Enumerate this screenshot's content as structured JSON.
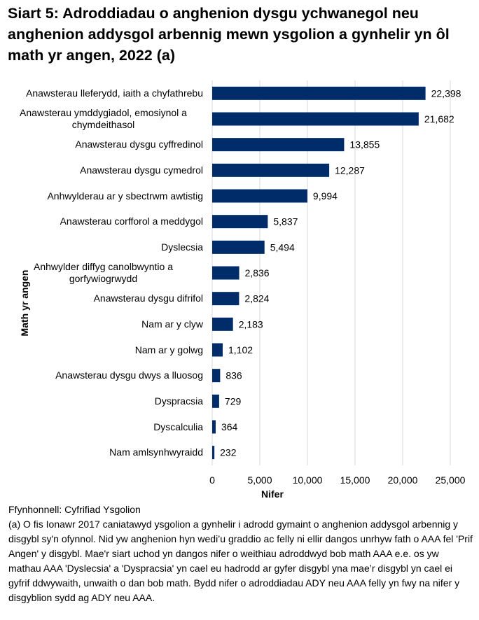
{
  "chart_data": {
    "type": "bar",
    "orientation": "horizontal",
    "title": "Siart 5: Adroddiadau o anghenion dysgu ychwanegol neu anghenion addysgol arbennig mewn ysgolion a gynhelir yn ôl math yr angen, 2022 (a)",
    "xlabel": "Nifer",
    "ylabel": "Math yr angen",
    "xlim": [
      0,
      25000
    ],
    "xticks": [
      "0",
      "5,000",
      "10,000",
      "15,000",
      "20,000",
      "25,000"
    ],
    "xtick_values": [
      0,
      5000,
      10000,
      15000,
      20000,
      25000
    ],
    "grid": true,
    "bar_color": "#002D6A",
    "categories": [
      "Anawsterau lleferydd, iaith a chyfathrebu",
      "Anawsterau ymddygiadol, emosiynol a chymdeithasol",
      "Anawsterau dysgu cyffredinol",
      "Anawsterau dysgu cymedrol",
      "Anhwylderau ar y sbectrwm awtistig",
      "Anawsterau corfforol a meddygol",
      "Dyslecsia",
      "Anhwylder diffyg canolbwyntio a gorfywiogrwydd",
      "Anawsterau dysgu difrifol",
      "Nam ar y clyw",
      "Nam ar y golwg",
      "Anawsterau dysgu dwys a lluosog",
      "Dyspracsia",
      "Dyscalculia",
      "Nam amlsynhwyraidd"
    ],
    "values": [
      22398,
      21682,
      13855,
      12287,
      9994,
      5837,
      5494,
      2836,
      2824,
      2183,
      1102,
      836,
      729,
      364,
      232
    ],
    "data_labels": [
      "22,398",
      "21,682",
      "13,855",
      "12,287",
      "9,994",
      "5,837",
      "5,494",
      "2,836",
      "2,824",
      "2,183",
      "1,102",
      "836",
      "729",
      "364",
      "232"
    ]
  },
  "notes": {
    "source": "Ffynhonnell: Cyfrifiad Ysgolion",
    "footnote": "(a) O fis Ionawr 2017 caniatawyd ysgolion a gynhelir i adrodd gymaint o anghenion addysgol arbennig y disgybl sy'n ofynnol. Nid yw anghenion hyn wedi’u graddio ac felly ni ellir dangos unrhyw fath o AAA fel 'Prif Angen' y disgybl. Mae'r siart uchod yn dangos nifer o weithiau adroddwyd bob math AAA e.e. os yw mathau AAA 'Dyslecsia' a 'Dyspracsia' yn cael eu hadrodd ar gyfer disgybl yna mae’r disgybl yn cael ei gyfrif ddwywaith, unwaith o dan bob math. Bydd nifer o adroddiadau ADY neu AAA felly yn fwy na nifer y disgyblion sydd ag ADY neu AAA."
  }
}
